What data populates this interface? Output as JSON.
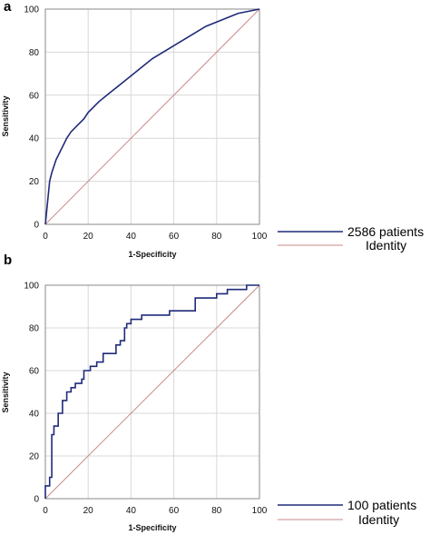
{
  "chart_data": [
    {
      "type": "line",
      "panel_label": "a",
      "xlabel": "1-Specificity",
      "ylabel": "Sensitivity",
      "xlim": [
        0,
        100
      ],
      "ylim": [
        0,
        100
      ],
      "xticks": [
        0,
        20,
        40,
        60,
        80,
        100
      ],
      "yticks": [
        0,
        20,
        40,
        60,
        80,
        100
      ],
      "grid": true,
      "legend_position": "bottom-right, outside plot",
      "series": [
        {
          "name": "2586 patients",
          "color": "#1f2a7a",
          "x": [
            0,
            0.5,
            1,
            1.5,
            2,
            3,
            4,
            5,
            6,
            8,
            10,
            12,
            15,
            18,
            20,
            25,
            30,
            35,
            40,
            45,
            50,
            55,
            60,
            65,
            70,
            75,
            80,
            85,
            90,
            95,
            100
          ],
          "y": [
            0,
            5,
            10,
            15,
            20,
            24,
            27,
            30,
            32,
            36,
            40,
            43,
            46,
            49,
            52,
            57,
            61,
            65,
            69,
            73,
            77,
            80,
            83,
            86,
            89,
            92,
            94,
            96,
            98,
            99,
            100
          ]
        },
        {
          "name": "Identity",
          "color": "#c98a8a",
          "x": [
            0,
            100
          ],
          "y": [
            0,
            100
          ]
        }
      ]
    },
    {
      "type": "line",
      "panel_label": "b",
      "xlabel": "1-Specificity",
      "ylabel": "Sensitivity",
      "xlim": [
        0,
        100
      ],
      "ylim": [
        0,
        100
      ],
      "xticks": [
        0,
        20,
        40,
        60,
        80,
        100
      ],
      "yticks": [
        0,
        20,
        40,
        60,
        80,
        100
      ],
      "grid": true,
      "legend_position": "bottom-right, outside plot",
      "series": [
        {
          "name": "100 patients",
          "color": "#1f2a7a",
          "x": [
            0,
            0,
            2,
            2,
            3,
            3,
            4,
            4,
            6,
            6,
            8,
            8,
            10,
            10,
            12,
            12,
            14,
            14,
            17,
            17,
            18,
            18,
            21,
            21,
            24,
            24,
            27,
            27,
            33,
            33,
            35,
            35,
            37,
            37,
            38,
            38,
            40,
            40,
            42,
            42,
            45,
            45,
            56,
            56,
            58,
            58,
            70,
            70,
            72,
            72,
            80,
            80,
            85,
            85,
            94,
            94,
            100
          ],
          "y": [
            0,
            6,
            6,
            10,
            10,
            30,
            30,
            34,
            34,
            40,
            40,
            46,
            46,
            50,
            50,
            52,
            52,
            54,
            54,
            56,
            56,
            60,
            60,
            62,
            62,
            64,
            64,
            68,
            68,
            72,
            72,
            74,
            74,
            80,
            80,
            82,
            82,
            84,
            84,
            84,
            84,
            86,
            86,
            86,
            86,
            88,
            88,
            94,
            94,
            94,
            94,
            96,
            96,
            98,
            98,
            100,
            100
          ]
        },
        {
          "name": "Identity",
          "color": "#c98a8a",
          "x": [
            0,
            100
          ],
          "y": [
            0,
            100
          ]
        }
      ]
    }
  ]
}
